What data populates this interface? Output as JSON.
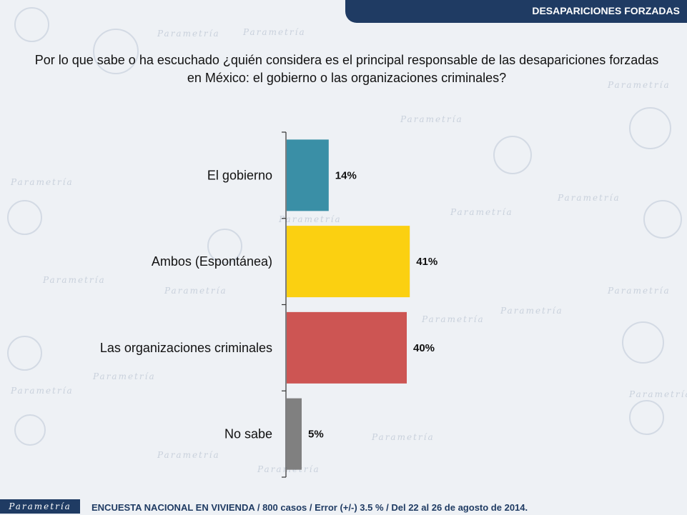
{
  "header": {
    "section_title": "DESAPARICIONES FORZADAS"
  },
  "question": "Por lo que sabe o ha escuchado ¿quién considera es el principal responsable de las desapariciones forzadas en México: el gobierno o las organizaciones criminales?",
  "footer": {
    "logo": "Parametría",
    "note": "ENCUESTA NACIONAL EN VIVIENDA / 800 casos / Error (+/-) 3.5 % / Del 22 al 26 de agosto de 2014."
  },
  "watermark": {
    "text": "Parametría"
  },
  "colors": {
    "banner": "#1f3b63",
    "bar_gobierno": "#3a8fa6",
    "bar_ambos": "#fbd011",
    "bar_organizaciones": "#cd5553",
    "bar_nosabe": "#808080"
  },
  "chart_data": {
    "type": "bar",
    "orientation": "horizontal",
    "categories": [
      "El gobierno",
      "Ambos (Espontánea)",
      "Las organizaciones criminales",
      "No sabe"
    ],
    "values": [
      14,
      41,
      40,
      5
    ],
    "value_labels": [
      "14%",
      "41%",
      "40%",
      "5%"
    ],
    "colors": [
      "#3a8fa6",
      "#fbd011",
      "#cd5553",
      "#808080"
    ],
    "xlim": [
      0,
      100
    ],
    "unit": "%",
    "grid": false,
    "legend": "none"
  }
}
